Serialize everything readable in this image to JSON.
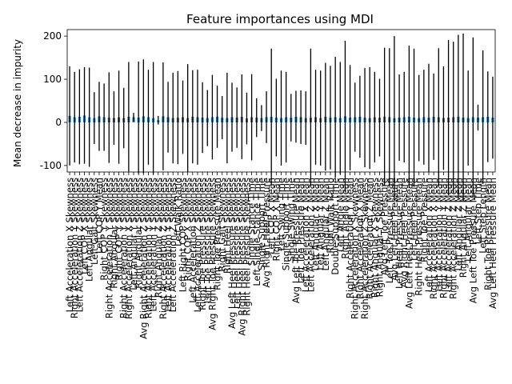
{
  "chart_data": {
    "type": "bar",
    "title": "Feature importances using MDI",
    "ylabel": "Mean decrease in impurity",
    "xlabel": "",
    "ylim": [
      -115,
      215
    ],
    "yticks": [
      -100,
      0,
      100,
      200
    ],
    "grid": false,
    "bar_color": "#1f77b4",
    "errorbar_color": "#000000",
    "note": "Each category has a very small bar (importance) and a large black error bar (std). Tick labels are dense and overlap; readable ones listed, others are best guesses.",
    "categories": [
      "Left Acceleration X Skewness",
      "Right Acceleration Y Skewness",
      "Left Acceleration Z Skewness",
      "Left COP X Skewness",
      "Left Angular Skewness",
      "Left Gait Skewness",
      "Left COP Y Mean",
      "Right COP Y Skewness",
      "Right Acceleration Y Skewness",
      "Right Angular Skewness",
      "Right COP Y Skewness",
      "Right Acceleration Y Skewness",
      "Right Acceleration X Skewness",
      "Left Angular Y Skewness",
      "Right Angular Skewness",
      "Avg Right Acceleration Z Skewness",
      "Right Acceleration Y Skewness",
      "Left Acceleration Y Skewness",
      "Right Angular Z Skewness",
      "Right Acceleration Z Skewness",
      "Left Acceleration Y Skewness",
      "Left Acceleration Z Skewness",
      "Left Walk Ratio",
      "Left Right COP Skewness",
      "Right COP X Skewness",
      "Left Acceleration Skewness",
      "Left Acceleration Z Skewness",
      "Right Toe Pressure Skewness",
      "Left Toe Pressure Skewness",
      "Avg Right Toe Pressure Skewness",
      "Right Toe Pressure Mean",
      "Right Gait Skewness",
      "Right Heel Skewness",
      "Avg Left Heel Pressure Skewness",
      "Left Heel Pressure Skewness",
      "Avg Right Heel Pressure Skewness",
      "Right Heel Pressure Skewness",
      "Single Stance Time",
      "Left Single Stance Time",
      "Single Support Time",
      "Avg Right Heel Pressure",
      "Left COP X Mean",
      "Right COP X Mean",
      "Left Swing Time",
      "Single Support Time",
      "Single Swing Time",
      "Avg Left Toe Pressure Mean",
      "Left Toe Pressure Mean",
      "Left Acceleration X Mean",
      "Left Acceleration Z Mean",
      "Left Angular X Mean",
      "Left Angular Y Mean",
      "Left Angular Z Mean",
      "Right Walk Ratio",
      "Double Support Time",
      "Left Angle Mean",
      "Right Angle Mean",
      "Right Acceleration Y Mean",
      "Right Acceleration X Skewness",
      "Right Acceleration X Mean",
      "Right Acceleration Z Skewness",
      "Right Acceleration Z Mean",
      "Right Angular X Skewness",
      "Right Angular Y Skewness",
      "Avg Left Toe Pressure",
      "Left Toe Pressure Mean",
      "Avg Left Heel Pressure",
      "Left Heel Pressure Mean",
      "Avg Right Heel Pressure",
      "Avg Left Heel Pressure Mean",
      "Left Heel Pressure",
      "Right Heel Pressure Mean",
      "Right Toe Pressure",
      "Left Acceleration X Mean",
      "Right Acceleration X Mean",
      "Left Acceleration Y Mean",
      "Right Acceleration Y Mean",
      "Left Acceleration Z Mean",
      "Right Acceleration Z Mean",
      "Left Angular Z Mean",
      "Right Angular Z Mean",
      "Left Angular Mean",
      "Avg Left Toe Pressure Mean",
      "Left Step Time",
      "Left Step Length",
      "Right Toe Pressure Mean",
      "Avg Left Heel Pressure Mean"
    ],
    "values": [
      15,
      12,
      13,
      16,
      12,
      10,
      14,
      12,
      11,
      10,
      12,
      10,
      13,
      12,
      11,
      14,
      12,
      10,
      5,
      14,
      12,
      10,
      11,
      12,
      10,
      13,
      12,
      11,
      10,
      12,
      13,
      11,
      10,
      12,
      11,
      13,
      9,
      12,
      11,
      10,
      12,
      13,
      11,
      10,
      12,
      11,
      13,
      12,
      10,
      11,
      12,
      10,
      13,
      11,
      12,
      10,
      14,
      11,
      12,
      13,
      11,
      10,
      12,
      11,
      13,
      12,
      10,
      11,
      12,
      13,
      11,
      10,
      12,
      11,
      13,
      12,
      10,
      11,
      12,
      13,
      11,
      10,
      12,
      11,
      12,
      13,
      11
    ],
    "errors": [
      115,
      105,
      110,
      112,
      115,
      60,
      80,
      78,
      105,
      62,
      108,
      70,
      127,
      10,
      130,
      132,
      110,
      130,
      10,
      125,
      82,
      105,
      108,
      85,
      125,
      108,
      110,
      82,
      65,
      98,
      72,
      50,
      105,
      80,
      70,
      98,
      60,
      100,
      45,
      30,
      60,
      158,
      90,
      110,
      105,
      55,
      60,
      62,
      62,
      160,
      110,
      110,
      125,
      120,
      140,
      130,
      175,
      122,
      80,
      95,
      115,
      118,
      105,
      90,
      160,
      160,
      190,
      100,
      105,
      165,
      160,
      100,
      110,
      125,
      100,
      160,
      120,
      180,
      175,
      190,
      195,
      110,
      185,
      30,
      155,
      105,
      95
    ]
  }
}
